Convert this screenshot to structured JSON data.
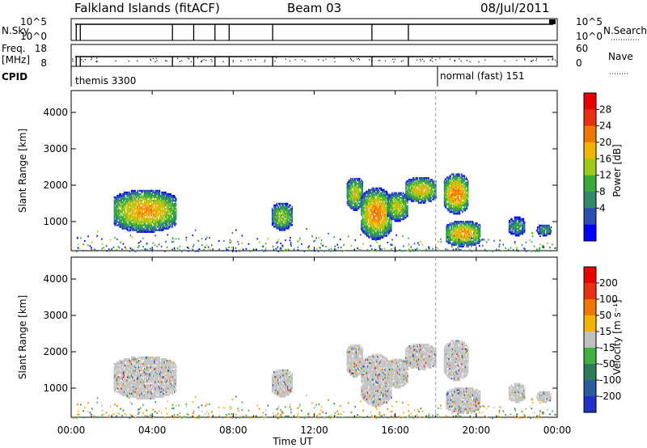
{
  "header": {
    "station": "Falkland Islands (fitACF)",
    "beam": "Beam 03",
    "date": "08/Jul/2011"
  },
  "summary": {
    "nsky_label": "N.Sky",
    "nsearch_label": "N.Search",
    "freq_label": "Freq.",
    "freq_unit": "[MHz]",
    "nave_label": "Nave",
    "cpid_label": "CPID",
    "nsky_ticks": [
      "10^5",
      "10^0"
    ],
    "nsearch_ticks": [
      "10^5",
      "10^0"
    ],
    "freq_ticks": [
      "18",
      "8"
    ],
    "nave_ticks": [
      "60",
      "0"
    ],
    "cpid_segments": [
      {
        "label": "themis 3300",
        "start_hour": 0.0
      },
      {
        "label": "normal (fast) 151",
        "start_hour": 18.0
      }
    ]
  },
  "chart_data": [
    {
      "type": "heatmap",
      "name": "power",
      "xlabel": "Time UT",
      "ylabel": "Slant Range [km]",
      "xlim": [
        0,
        24
      ],
      "ylim": [
        200,
        4600
      ],
      "x_ticks": [
        "00:00",
        "04:00",
        "08:00",
        "12:00",
        "16:00",
        "20:00",
        "00:00"
      ],
      "x_tick_values": [
        0,
        4,
        8,
        12,
        16,
        20,
        24
      ],
      "y_ticks": [
        "1000",
        "2000",
        "3000",
        "4000"
      ],
      "y_tick_values": [
        1000,
        2000,
        3000,
        4000
      ],
      "colorbar_label": "Power [dB]",
      "colorbar_ticks": [
        "4",
        "8",
        "12",
        "16",
        "20",
        "24",
        "28"
      ],
      "colorbar_colors": [
        "#0000ff",
        "#2a4fb0",
        "#2e8a6a",
        "#3aaa3a",
        "#a0c818",
        "#f0b400",
        "#f07800",
        "#e83010",
        "#e80000"
      ],
      "echo_regions": [
        {
          "t0": 2.1,
          "t1": 5.2,
          "r0": 700,
          "r1": 1850,
          "peak": 24
        },
        {
          "t0": 9.9,
          "t1": 10.9,
          "r0": 750,
          "r1": 1500,
          "peak": 18
        },
        {
          "t0": 13.6,
          "t1": 14.4,
          "r0": 1300,
          "r1": 2200,
          "peak": 20
        },
        {
          "t0": 14.3,
          "t1": 15.8,
          "r0": 500,
          "r1": 1900,
          "peak": 26
        },
        {
          "t0": 15.6,
          "t1": 16.6,
          "r0": 1000,
          "r1": 1800,
          "peak": 20
        },
        {
          "t0": 16.5,
          "t1": 18.0,
          "r0": 1500,
          "r1": 2200,
          "peak": 22
        },
        {
          "t0": 18.4,
          "t1": 19.6,
          "r0": 1200,
          "r1": 2300,
          "peak": 26
        },
        {
          "t0": 18.5,
          "t1": 20.2,
          "r0": 300,
          "r1": 1000,
          "peak": 24
        },
        {
          "t0": 21.6,
          "t1": 22.4,
          "r0": 600,
          "r1": 1100,
          "peak": 12
        },
        {
          "t0": 23.0,
          "t1": 23.7,
          "r0": 600,
          "r1": 900,
          "peak": 12
        }
      ]
    },
    {
      "type": "heatmap",
      "name": "velocity",
      "xlabel": "Time UT",
      "ylabel": "Slant Range [km]",
      "xlim": [
        0,
        24
      ],
      "ylim": [
        200,
        4600
      ],
      "x_ticks": [
        "00:00",
        "04:00",
        "08:00",
        "12:00",
        "16:00",
        "20:00",
        "00:00"
      ],
      "y_ticks": [
        "1000",
        "2000",
        "3000",
        "4000"
      ],
      "colorbar_label": "Velocity [m s⁻¹]",
      "colorbar_ticks": [
        "200",
        "100",
        "50",
        "15",
        "-15",
        "-50",
        "-100",
        "-200"
      ],
      "colorbar_colors": [
        "#2030c8",
        "#2a5aa0",
        "#2e7a5a",
        "#40b040",
        "#c0c0c0",
        "#f0b400",
        "#f07800",
        "#e83010",
        "#e80000"
      ]
    }
  ]
}
